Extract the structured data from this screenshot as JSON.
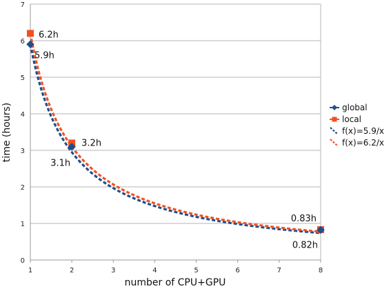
{
  "chart_data": {
    "type": "line",
    "xlabel": "number of CPU+GPU",
    "ylabel": "time (hours)",
    "xlim": [
      1,
      8
    ],
    "ylim": [
      0,
      7
    ],
    "xticks": [
      1,
      2,
      3,
      4,
      5,
      6,
      7,
      8
    ],
    "yticks": [
      0,
      1,
      2,
      3,
      4,
      5,
      6,
      7
    ],
    "grid": "horizontal",
    "legend_position": "right",
    "series": [
      {
        "name": "global",
        "kind": "markers",
        "marker": "diamond",
        "color": "#1f4e8c",
        "x": [
          1,
          2,
          8
        ],
        "y": [
          5.9,
          3.1,
          0.82
        ],
        "labels": [
          "5.9h",
          "3.1h",
          "0.82h"
        ]
      },
      {
        "name": "local",
        "kind": "markers",
        "marker": "square",
        "color": "#f25022",
        "x": [
          1,
          2,
          8
        ],
        "y": [
          6.2,
          3.2,
          0.83
        ],
        "labels": [
          "6.2h",
          "3.2h",
          "0.83h"
        ]
      },
      {
        "name": "f(x)=5.9/x",
        "kind": "curve",
        "coefficient": 5.9,
        "color": "#1f4e8c"
      },
      {
        "name": "f(x)=6.2/x",
        "kind": "curve",
        "coefficient": 6.2,
        "color": "#f25022"
      }
    ]
  }
}
